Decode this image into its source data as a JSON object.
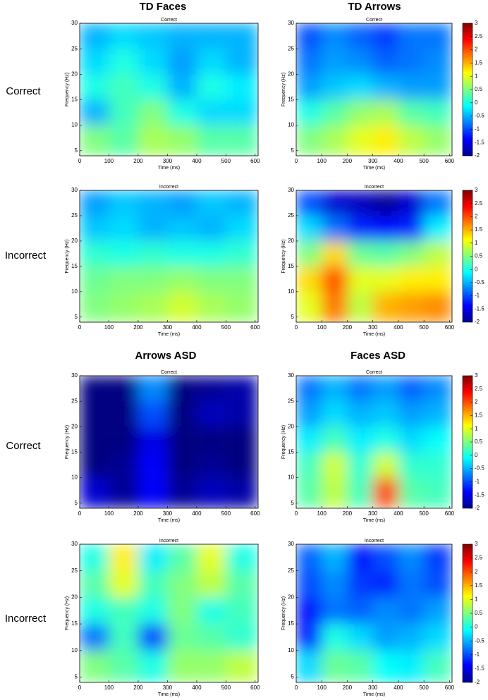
{
  "groups": [
    {
      "title": "TD Faces"
    },
    {
      "title": "TD Arrows"
    },
    {
      "title": "Arrows ASD"
    },
    {
      "title": "Faces ASD"
    }
  ],
  "row_labels": [
    "Correct",
    "Incorrect",
    "Correct",
    "Incorrect"
  ],
  "chart_data": [
    {
      "type": "heatmap",
      "title": "Correct",
      "x_label": "Time (ms)",
      "y_label": "Frequency (Hz)",
      "colormap": "jet",
      "colorbar": false,
      "xlim": [
        0,
        610
      ],
      "ylim": [
        4,
        30
      ],
      "xticks": [
        0,
        100,
        200,
        300,
        400,
        500,
        600
      ],
      "yticks": [
        5,
        10,
        15,
        20,
        25,
        30
      ],
      "xbins": [
        0,
        100,
        200,
        300,
        400,
        500,
        600
      ],
      "ybins": [
        4,
        10,
        15,
        20,
        25,
        30
      ],
      "clim": [
        -2,
        3
      ],
      "cticks": [
        -2,
        -1.5,
        -1,
        -0.5,
        0,
        0.5,
        1,
        1.5,
        2,
        2.5,
        3
      ],
      "values": [
        [
          0.5,
          0.3,
          0.7,
          0.6,
          0.3,
          0.3
        ],
        [
          -0.5,
          0.2,
          0.5,
          0,
          -0.3,
          -0.3
        ],
        [
          0,
          0.2,
          0,
          -0.5,
          0,
          -0.2
        ],
        [
          -0.3,
          0,
          -0.3,
          -0.6,
          -0.3,
          -0.5
        ],
        [
          -0.5,
          -0.3,
          -0.4,
          -0.5,
          -0.5,
          -0.5
        ]
      ]
    },
    {
      "type": "heatmap",
      "title": "Correct",
      "x_label": "Time (ms)",
      "y_label": "Frequency (Hz)",
      "colormap": "jet",
      "colorbar": true,
      "xlim": [
        0,
        610
      ],
      "ylim": [
        4,
        30
      ],
      "xticks": [
        0,
        100,
        200,
        300,
        400,
        500,
        600
      ],
      "yticks": [
        5,
        10,
        15,
        20,
        25,
        30
      ],
      "xbins": [
        0,
        100,
        200,
        300,
        400,
        500,
        600
      ],
      "ybins": [
        4,
        10,
        15,
        20,
        25,
        30
      ],
      "clim": [
        -2,
        3
      ],
      "cticks": [
        -2,
        -1.5,
        -1,
        -0.5,
        0,
        0.5,
        1,
        1.5,
        2,
        2.5,
        3
      ],
      "values": [
        [
          0.5,
          0.7,
          1,
          1.2,
          0.8,
          0.6
        ],
        [
          0,
          0.3,
          0.6,
          0.7,
          0.3,
          0.2
        ],
        [
          -0.6,
          -0.4,
          -0.3,
          -0.5,
          -0.6,
          -0.6
        ],
        [
          -0.8,
          -0.6,
          -0.7,
          -0.9,
          -0.8,
          -0.7
        ],
        [
          -1,
          -0.7,
          -0.9,
          -1.1,
          -0.8,
          -0.8
        ]
      ]
    },
    {
      "type": "heatmap",
      "title": "Incorrect",
      "x_label": "Time (ms)",
      "y_label": "Frequency (Hz)",
      "colormap": "jet",
      "colorbar": false,
      "xlim": [
        0,
        610
      ],
      "ylim": [
        4,
        30
      ],
      "xticks": [
        0,
        100,
        200,
        300,
        400,
        500,
        600
      ],
      "yticks": [
        5,
        10,
        15,
        20,
        25,
        30
      ],
      "xbins": [
        0,
        100,
        200,
        300,
        400,
        500,
        600
      ],
      "ybins": [
        4,
        10,
        15,
        20,
        25,
        30
      ],
      "clim": [
        -2,
        3
      ],
      "cticks": [
        -2,
        -1.5,
        -1,
        -0.5,
        0,
        0.5,
        1,
        1.5,
        2,
        2.5,
        3
      ],
      "values": [
        [
          0.5,
          0.6,
          0.7,
          0.9,
          0.7,
          0.6
        ],
        [
          0.4,
          0.5,
          0.5,
          0.6,
          0.5,
          0.5
        ],
        [
          0.1,
          0,
          0.1,
          0,
          0,
          0.1
        ],
        [
          -0.4,
          -0.3,
          -0.5,
          -0.4,
          -0.5,
          -0.3
        ],
        [
          -0.6,
          -0.4,
          -0.5,
          -0.6,
          -0.4,
          -0.5
        ]
      ]
    },
    {
      "type": "heatmap",
      "title": "Incorrect",
      "x_label": "Time (ms)",
      "y_label": "Frequency (Hz)",
      "colormap": "jet",
      "colorbar": true,
      "xlim": [
        0,
        610
      ],
      "ylim": [
        4,
        30
      ],
      "xticks": [
        0,
        100,
        200,
        300,
        400,
        500,
        600
      ],
      "yticks": [
        5,
        10,
        15,
        20,
        25,
        30
      ],
      "xbins": [
        0,
        100,
        200,
        300,
        400,
        500,
        600
      ],
      "ybins": [
        4,
        10,
        15,
        20,
        25,
        30
      ],
      "clim": [
        -2,
        3
      ],
      "cticks": [
        -2,
        -1.5,
        -1,
        -0.5,
        0,
        0.5,
        1,
        1.5,
        2,
        2.5,
        3
      ],
      "values": [
        [
          1,
          1.8,
          0.8,
          1.5,
          1.6,
          1.7
        ],
        [
          1.3,
          2,
          1,
          1,
          1.2,
          1.2
        ],
        [
          0.5,
          1.3,
          0.4,
          0.3,
          0.5,
          0.8
        ],
        [
          -0.3,
          -0.8,
          -1.2,
          -1.3,
          -1.2,
          -0.2
        ],
        [
          -1,
          -1.6,
          -1.7,
          -1.9,
          -1.6,
          -0.8
        ]
      ]
    },
    {
      "type": "heatmap",
      "title": "Correct",
      "x_label": "Time (ms)",
      "y_label": "Frequency (Hz)",
      "colormap": "jet",
      "colorbar": false,
      "xlim": [
        0,
        610
      ],
      "ylim": [
        4,
        30
      ],
      "xticks": [
        0,
        100,
        200,
        300,
        400,
        500,
        600
      ],
      "yticks": [
        5,
        10,
        15,
        20,
        25,
        30
      ],
      "xbins": [
        0,
        100,
        200,
        300,
        400,
        500,
        600
      ],
      "ybins": [
        4,
        10,
        15,
        20,
        25,
        30
      ],
      "clim": [
        -2,
        3
      ],
      "cticks": [
        -2,
        -1.5,
        -1,
        -0.5,
        0,
        0.5,
        1,
        1.5,
        2,
        2.5,
        3
      ],
      "values": [
        [
          -1.6,
          -1.9,
          -1.4,
          -1.9,
          -1.7,
          -1.8
        ],
        [
          -2,
          -1.9,
          -1.4,
          -2,
          -1.9,
          -2
        ],
        [
          -2,
          -2,
          -1.5,
          -2,
          -2,
          -2
        ],
        [
          -2,
          -2,
          -1,
          -2,
          -1.7,
          -1.8
        ],
        [
          -2,
          -2,
          -0.7,
          -2,
          -1.9,
          -1.8
        ]
      ]
    },
    {
      "type": "heatmap",
      "title": "Correct",
      "x_label": "Time (ms)",
      "y_label": "Frequency (Hz)",
      "colormap": "jet",
      "colorbar": true,
      "xlim": [
        0,
        610
      ],
      "ylim": [
        4,
        30
      ],
      "xticks": [
        0,
        100,
        200,
        300,
        400,
        500,
        600
      ],
      "yticks": [
        5,
        10,
        15,
        20,
        25,
        30
      ],
      "xbins": [
        0,
        100,
        200,
        300,
        400,
        500,
        600
      ],
      "ybins": [
        4,
        10,
        15,
        20,
        25,
        30
      ],
      "clim": [
        -2,
        3
      ],
      "cticks": [
        -2,
        -1.5,
        -1,
        -0.5,
        0,
        0.5,
        1,
        1.5,
        2,
        2.5,
        3
      ],
      "values": [
        [
          0.3,
          0.8,
          0.2,
          2,
          0.3,
          0.2
        ],
        [
          0.2,
          0.9,
          0.1,
          0.9,
          0.1,
          0.1
        ],
        [
          -0.2,
          0.2,
          -0.2,
          0,
          -0.3,
          -0.1
        ],
        [
          -0.6,
          -0.3,
          -0.5,
          -0.4,
          -0.6,
          -0.5
        ],
        [
          -0.8,
          -0.5,
          -0.8,
          -0.6,
          -0.9,
          -0.7
        ]
      ]
    },
    {
      "type": "heatmap",
      "title": "Incorrect",
      "x_label": "Time (ms)",
      "y_label": "Frequency (Hz)",
      "colormap": "jet",
      "colorbar": false,
      "xlim": [
        0,
        610
      ],
      "ylim": [
        4,
        30
      ],
      "xticks": [
        0,
        100,
        200,
        300,
        400,
        500,
        600
      ],
      "yticks": [
        5,
        10,
        15,
        20,
        25,
        30
      ],
      "xbins": [
        0,
        100,
        200,
        300,
        400,
        500,
        600
      ],
      "ybins": [
        4,
        10,
        15,
        20,
        25,
        30
      ],
      "clim": [
        -2,
        3
      ],
      "cticks": [
        -2,
        -1.5,
        -1,
        -0.5,
        0,
        0.5,
        1,
        1.5,
        2,
        2.5,
        3
      ],
      "values": [
        [
          0.5,
          0.3,
          0,
          0.6,
          0.6,
          0.8
        ],
        [
          -0.8,
          0.2,
          -1,
          0.4,
          0.3,
          0.1
        ],
        [
          0,
          0.2,
          0,
          0.5,
          0,
          0.2
        ],
        [
          0.3,
          1,
          0.2,
          0.5,
          0.8,
          0.3
        ],
        [
          0,
          1.2,
          -0.2,
          0.3,
          1,
          0
        ]
      ]
    },
    {
      "type": "heatmap",
      "title": "Incorrect",
      "x_label": "Time (ms)",
      "y_label": "Frequency (Hz)",
      "colormap": "jet",
      "colorbar": true,
      "xlim": [
        0,
        610
      ],
      "ylim": [
        4,
        30
      ],
      "xticks": [
        0,
        100,
        200,
        300,
        400,
        500,
        600
      ],
      "yticks": [
        5,
        10,
        15,
        20,
        25,
        30
      ],
      "xbins": [
        0,
        100,
        200,
        300,
        400,
        500,
        600
      ],
      "ybins": [
        4,
        10,
        15,
        20,
        25,
        30
      ],
      "clim": [
        -2,
        3
      ],
      "cticks": [
        -2,
        -1.5,
        -1,
        -0.5,
        0,
        0.5,
        1,
        1.5,
        2,
        2.5,
        3
      ],
      "values": [
        [
          -0.3,
          0.4,
          0.3,
          -0.1,
          -0.2,
          0.2
        ],
        [
          -1.2,
          0,
          -0.3,
          -0.6,
          -0.5,
          -0.3
        ],
        [
          -1.3,
          -0.8,
          -0.9,
          -0.7,
          -0.8,
          -0.6
        ],
        [
          -1,
          -0.7,
          -1.1,
          -1.2,
          -0.8,
          -1
        ],
        [
          -0.9,
          -0.5,
          -1.3,
          -1,
          -0.7,
          -1.1
        ]
      ]
    }
  ]
}
